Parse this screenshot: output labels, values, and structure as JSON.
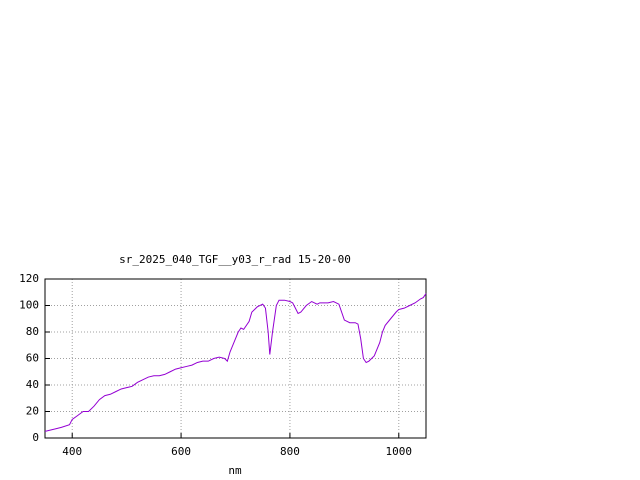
{
  "chart_data": {
    "type": "line",
    "title": "sr_2025_040_TGF__y03_r_rad 15-20-00",
    "xlabel": "nm",
    "x": [
      350,
      370,
      380,
      395,
      400,
      410,
      420,
      430,
      440,
      450,
      460,
      470,
      480,
      490,
      500,
      510,
      520,
      530,
      540,
      550,
      560,
      570,
      580,
      590,
      600,
      610,
      620,
      630,
      640,
      650,
      660,
      670,
      680,
      685,
      690,
      700,
      705,
      710,
      715,
      720,
      725,
      730,
      740,
      750,
      755,
      760,
      763,
      768,
      775,
      780,
      790,
      800,
      805,
      810,
      815,
      820,
      830,
      840,
      850,
      855,
      860,
      870,
      880,
      890,
      900,
      910,
      920,
      925,
      930,
      935,
      940,
      945,
      955,
      965,
      970,
      975,
      985,
      995,
      1000,
      1010,
      1020,
      1030,
      1040,
      1045,
      1050
    ],
    "values": [
      5,
      7,
      8,
      10,
      14,
      17,
      20,
      20,
      24,
      29,
      32,
      33,
      35,
      37,
      38,
      39,
      42,
      44,
      46,
      47,
      47,
      48,
      50,
      52,
      53,
      54,
      55,
      57,
      58,
      58,
      60,
      61,
      60,
      58,
      65,
      75,
      80,
      83,
      82,
      85,
      88,
      95,
      99,
      101,
      98,
      80,
      63,
      80,
      100,
      104,
      104,
      103,
      102,
      98,
      94,
      95,
      100,
      103,
      101,
      102,
      102,
      102,
      103,
      101,
      89,
      87,
      87,
      86,
      75,
      60,
      57,
      58,
      62,
      72,
      80,
      85,
      90,
      95,
      97,
      98,
      100,
      102,
      105,
      106,
      109
    ],
    "color": "#9400d3",
    "xlim": [
      350,
      1050
    ],
    "xticks": [
      400,
      600,
      800,
      1000
    ],
    "ylim": [
      0,
      120
    ],
    "yticks": [
      0,
      20,
      40,
      60,
      80,
      100,
      120
    ],
    "grid": true
  }
}
